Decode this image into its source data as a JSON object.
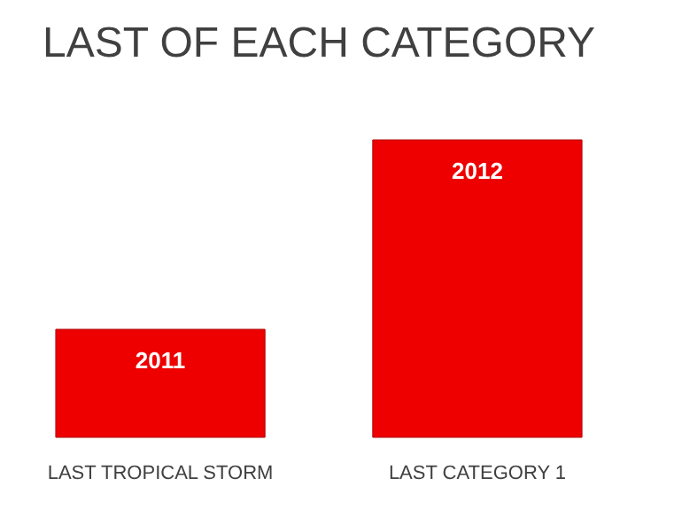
{
  "chart_data": {
    "type": "bar",
    "title": "LAST OF EACH CATEGORY",
    "categories": [
      "LAST TROPICAL STORM",
      "LAST CATEGORY 1"
    ],
    "values": [
      2011,
      2012
    ],
    "data_labels": true,
    "ylim": [
      2010.43,
      2012
    ],
    "tick_labels": "x",
    "color": "#ee0000"
  }
}
